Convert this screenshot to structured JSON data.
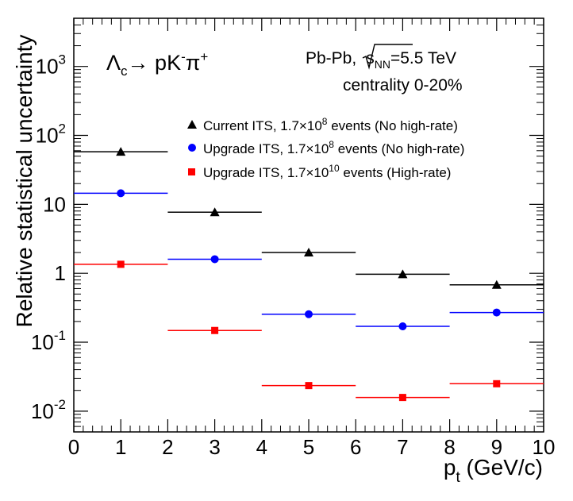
{
  "chart_data": {
    "type": "scatter",
    "title": "",
    "xlabel_main": "p",
    "xlabel_sub": "t",
    "xlabel_rest": " (GeV/c)",
    "ylabel": "Relative statistical uncertainty",
    "xlim": [
      0,
      10
    ],
    "ylim": [
      0.005,
      5000
    ],
    "y_scale": "log",
    "x_ticks": [
      "0",
      "1",
      "2",
      "3",
      "4",
      "5",
      "6",
      "7",
      "8",
      "9",
      "10"
    ],
    "y_ticks": [
      {
        "value": 0.01,
        "base": "10",
        "exp": "-2"
      },
      {
        "value": 0.1,
        "base": "10",
        "exp": "-1"
      },
      {
        "value": 1,
        "base": "1",
        "exp": ""
      },
      {
        "value": 10,
        "base": "10",
        "exp": ""
      },
      {
        "value": 100,
        "base": "10",
        "exp": "2"
      },
      {
        "value": 1000,
        "base": "10",
        "exp": "3"
      }
    ],
    "bin_edges": [
      0,
      2,
      4,
      6,
      8,
      10
    ],
    "bin_centers": [
      1,
      3,
      5,
      7,
      9
    ],
    "series": [
      {
        "legend_pre": "Current ITS, 1.7×10",
        "legend_exp": "8",
        "legend_post": " events (No high-rate)",
        "marker": "triangle",
        "color": "#000000",
        "values": [
          58,
          7.7,
          2.0,
          0.97,
          0.68
        ]
      },
      {
        "legend_pre": "Upgrade ITS, 1.7×10",
        "legend_exp": "8",
        "legend_post": " events (No high-rate)",
        "marker": "circle",
        "color": "#0000ff",
        "values": [
          14.5,
          1.6,
          0.255,
          0.17,
          0.27
        ]
      },
      {
        "legend_pre": "Upgrade ITS, 1.7×10",
        "legend_exp": "10",
        "legend_post": " events (High-rate)",
        "marker": "square",
        "color": "#ff0000",
        "values": [
          1.35,
          0.148,
          0.0235,
          0.0158,
          0.025
        ]
      }
    ],
    "annotations": {
      "decay_lambda": "Λ",
      "decay_lambda_sub": "c",
      "decay_arrow": "→ pK",
      "decay_k_sup": "-",
      "decay_pi": "π",
      "decay_pi_sup": "+",
      "system_pre": "Pb-Pb,",
      "system_sqrt": "s",
      "system_sqrt_sub": "NN",
      "system_energy": "=5.5 TeV",
      "centrality": "centrality 0-20%"
    }
  }
}
